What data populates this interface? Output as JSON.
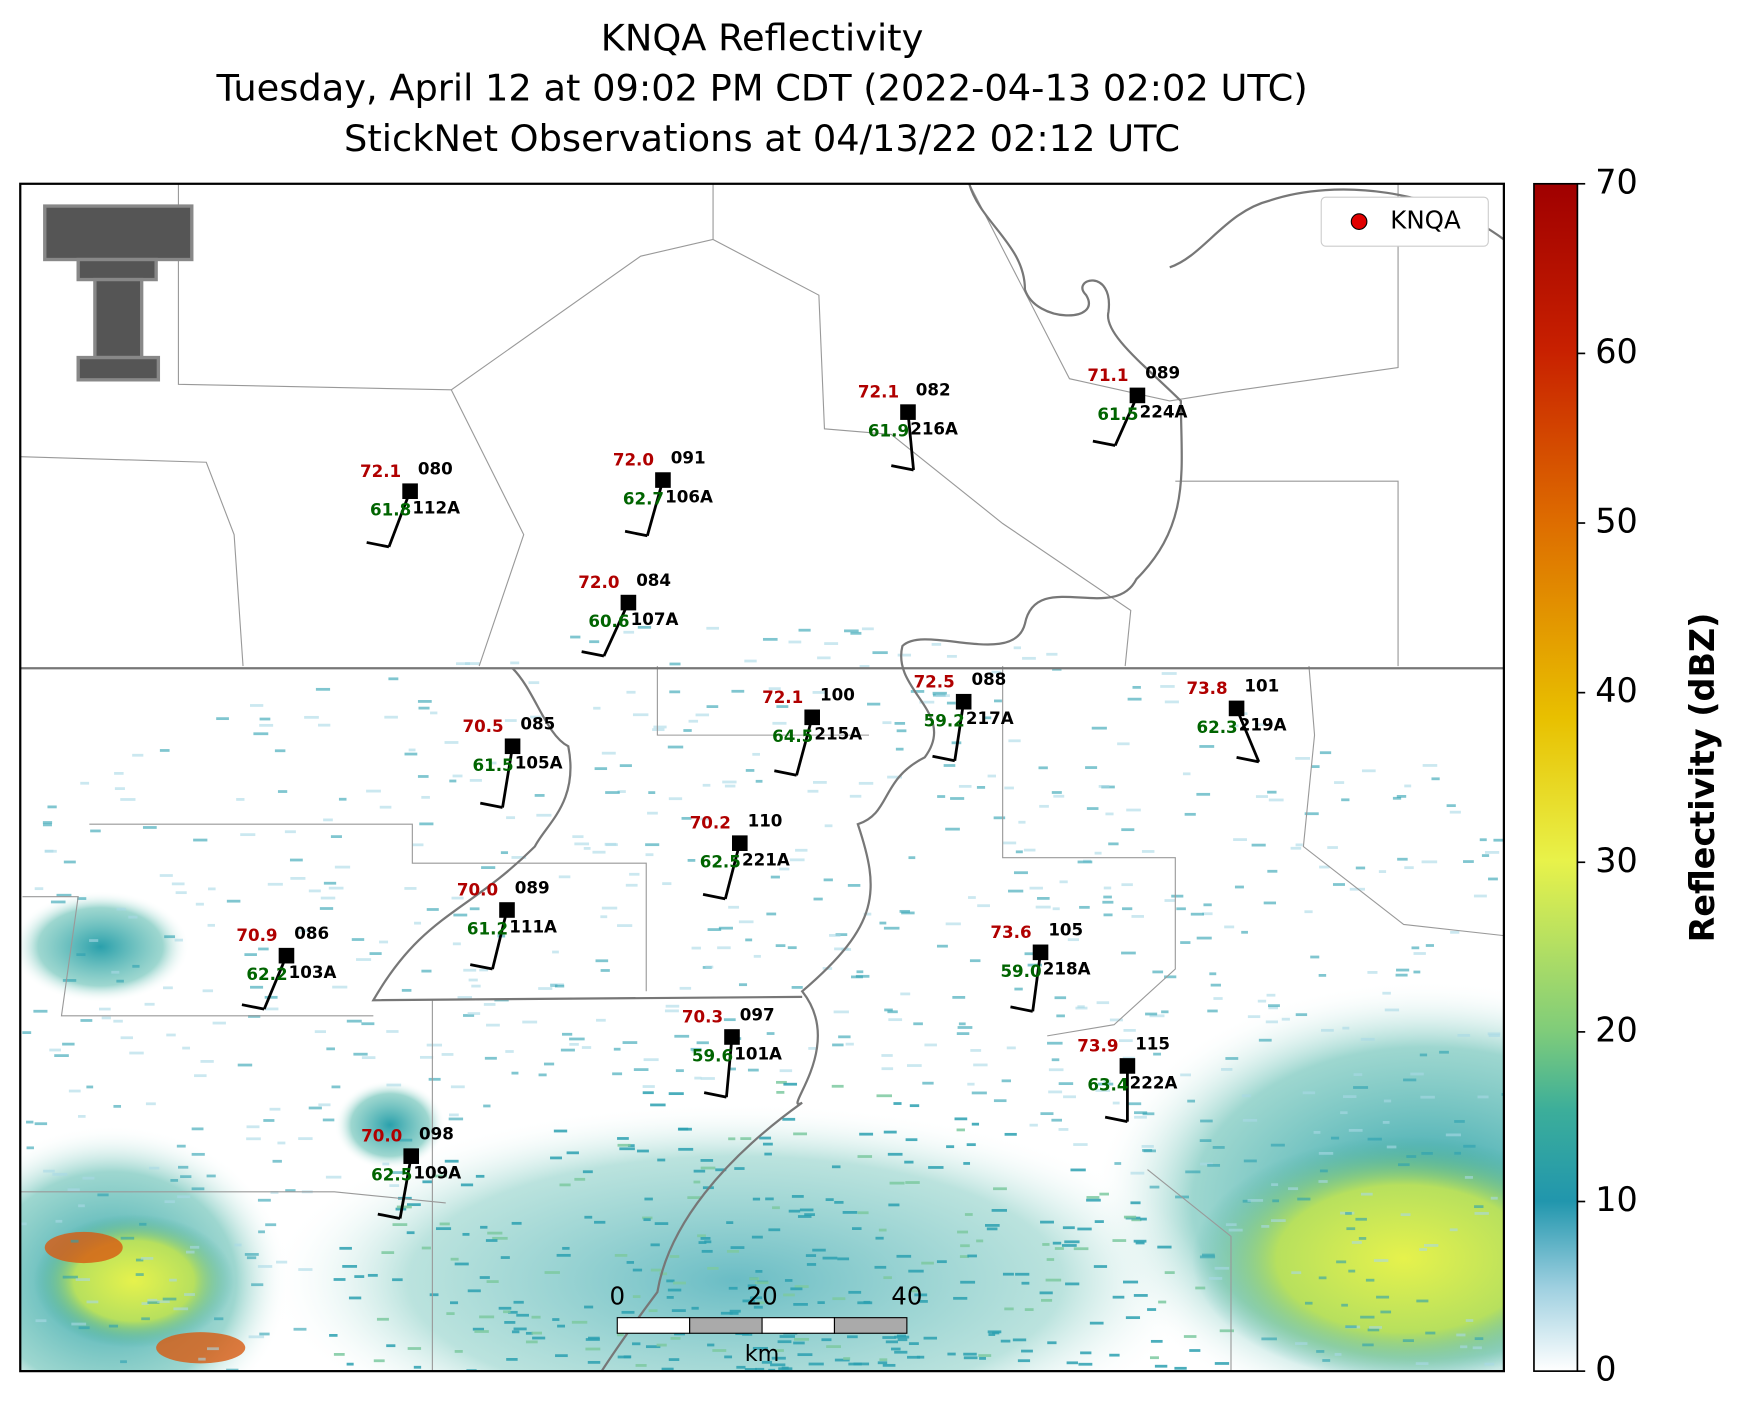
{
  "title": {
    "line1": "KNQA Reflectivity",
    "line2": "Tuesday, April 12 at 09:02 PM CDT (2022-04-13 02:02 UTC)",
    "line3": "StickNet Observations at 04/13/22 02:12 UTC"
  },
  "legend": {
    "label": "KNQA"
  },
  "colorbar": {
    "label": "Reflectivity (dBZ)",
    "lim": [
      0,
      70
    ],
    "ticks": [
      0,
      10,
      20,
      30,
      40,
      50,
      60,
      70
    ]
  },
  "scale_bar": {
    "ticks": [
      0,
      20,
      40
    ],
    "unit": "km"
  },
  "stations": [
    {
      "id": "112A",
      "temperature": "72.1",
      "dewpoint": "61.8",
      "pressure": "080"
    },
    {
      "id": "106A",
      "temperature": "72.0",
      "dewpoint": "62.7",
      "pressure": "091"
    },
    {
      "id": "216A",
      "temperature": "72.1",
      "dewpoint": "61.9",
      "pressure": "082"
    },
    {
      "id": "224A",
      "temperature": "71.1",
      "dewpoint": "61.5",
      "pressure": "089"
    },
    {
      "id": "107A",
      "temperature": "72.0",
      "dewpoint": "60.6",
      "pressure": "084"
    },
    {
      "id": "105A",
      "temperature": "70.5",
      "dewpoint": "61.5",
      "pressure": "085"
    },
    {
      "id": "215A",
      "temperature": "72.1",
      "dewpoint": "64.5",
      "pressure": "100"
    },
    {
      "id": "217A",
      "temperature": "72.5",
      "dewpoint": "59.2",
      "pressure": "088"
    },
    {
      "id": "219A",
      "temperature": "73.8",
      "dewpoint": "62.3",
      "pressure": "101"
    },
    {
      "id": "221A",
      "temperature": "70.2",
      "dewpoint": "62.5",
      "pressure": "110"
    },
    {
      "id": "111A",
      "temperature": "70.0",
      "dewpoint": "61.2",
      "pressure": "089"
    },
    {
      "id": "103A",
      "temperature": "70.9",
      "dewpoint": "62.2",
      "pressure": "086"
    },
    {
      "id": "218A",
      "temperature": "73.6",
      "dewpoint": "59.0",
      "pressure": "105"
    },
    {
      "id": "101A",
      "temperature": "70.3",
      "dewpoint": "59.6",
      "pressure": "097"
    },
    {
      "id": "222A",
      "temperature": "73.9",
      "dewpoint": "63.4",
      "pressure": "115"
    },
    {
      "id": "109A",
      "temperature": "70.0",
      "dewpoint": "62.5",
      "pressure": "098"
    }
  ]
}
